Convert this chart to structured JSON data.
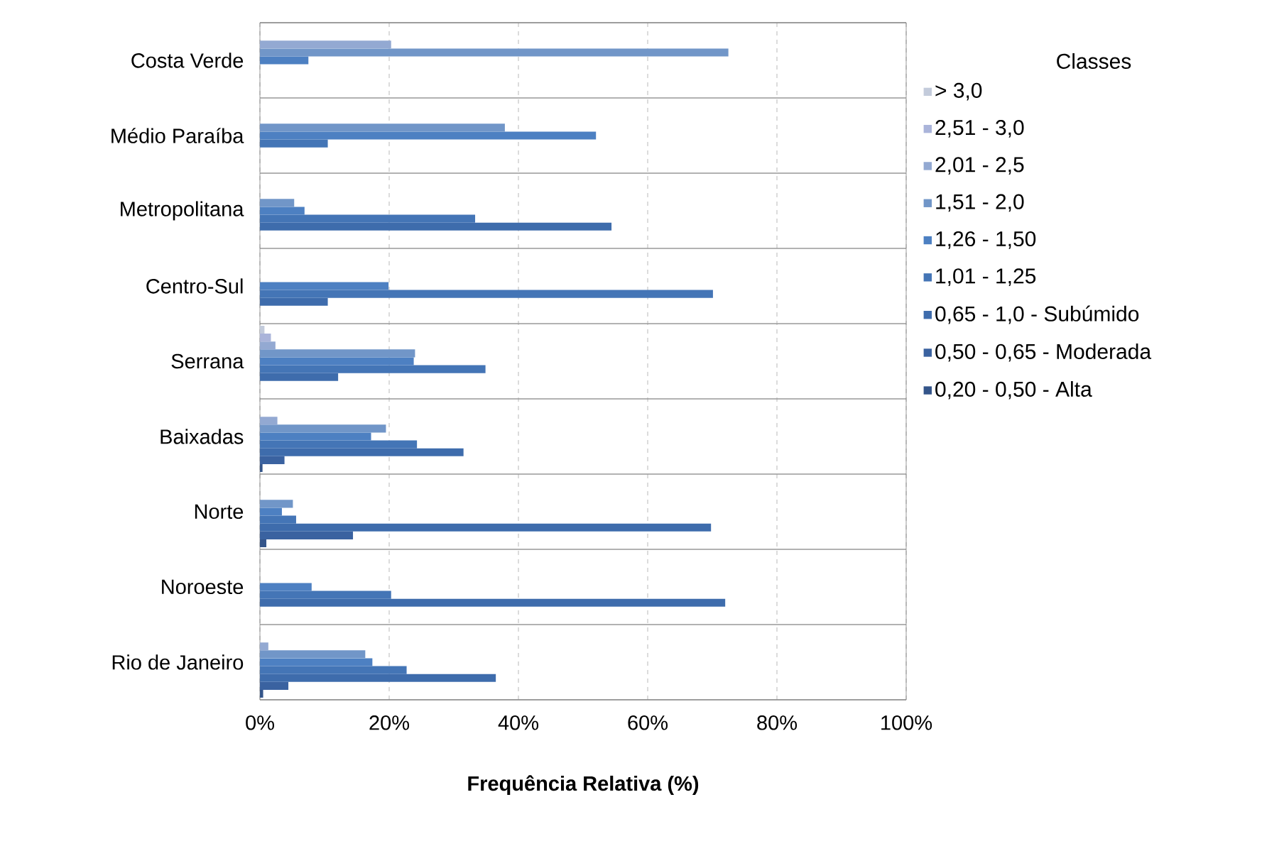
{
  "chart_data": {
    "type": "bar",
    "orientation": "horizontal",
    "xlabel": "Frequência Relativa (%)",
    "legend_title": "Classes",
    "legend": "right",
    "grid": true,
    "categories": [
      "Costa Verde",
      "Médio Paraíba",
      "Metropolitana",
      "Centro-Sul",
      "Serrana",
      "Baixadas",
      "Norte",
      "Noroeste",
      "Rio de Janeiro"
    ],
    "xlim": [
      0,
      100
    ],
    "xticks": [
      {
        "value": 0,
        "label": "0%"
      },
      {
        "value": 20,
        "label": "20%"
      },
      {
        "value": 40,
        "label": "40%"
      },
      {
        "value": 60,
        "label": "60%"
      },
      {
        "value": 80,
        "label": "80%"
      },
      {
        "value": 100,
        "label": "100%"
      }
    ],
    "series": [
      {
        "name": "0,20 - 0,50 - Alta",
        "color": "#34558a",
        "values": [
          0,
          0,
          0,
          0,
          0,
          0.4,
          1,
          0,
          0.5
        ]
      },
      {
        "name": "0,50 - 0,65 - Moderada",
        "color": "#3a62a0",
        "values": [
          0,
          0,
          0,
          0,
          0,
          3.8,
          14.4,
          0,
          4.4
        ]
      },
      {
        "name": "0,65 - 1,0 - Subúmido",
        "color": "#3e6cac",
        "values": [
          0,
          0,
          54.4,
          10.5,
          12.1,
          31.5,
          69.8,
          72,
          36.5
        ]
      },
      {
        "name": "1,01 - 1,25",
        "color": "#4475b6",
        "values": [
          0,
          10.5,
          33.3,
          70.1,
          34.9,
          24.3,
          5.6,
          20.3,
          22.7
        ]
      },
      {
        "name": "1,26 - 1,50",
        "color": "#4d80c2",
        "values": [
          7.5,
          52,
          6.9,
          19.9,
          23.8,
          17.2,
          3.4,
          8,
          17.4
        ]
      },
      {
        "name": "1,51 - 2,0",
        "color": "#7196c8",
        "values": [
          72.5,
          37.9,
          5.3,
          0,
          24,
          19.5,
          5.1,
          0,
          16.3
        ]
      },
      {
        "name": "2,01 - 2,5",
        "color": "#93a9d2",
        "values": [
          20.3,
          0,
          0,
          0,
          2.4,
          2.7,
          0,
          0,
          1.3
        ]
      },
      {
        "name": "2,51 - 3,0",
        "color": "#aab4da",
        "values": [
          0,
          0,
          0,
          0,
          1.7,
          0,
          0,
          0,
          0
        ]
      },
      {
        "name": "> 3,0",
        "color": "#c3cbdb",
        "values": [
          0,
          0,
          0,
          0,
          0.7,
          0,
          0,
          0,
          0
        ]
      }
    ]
  }
}
